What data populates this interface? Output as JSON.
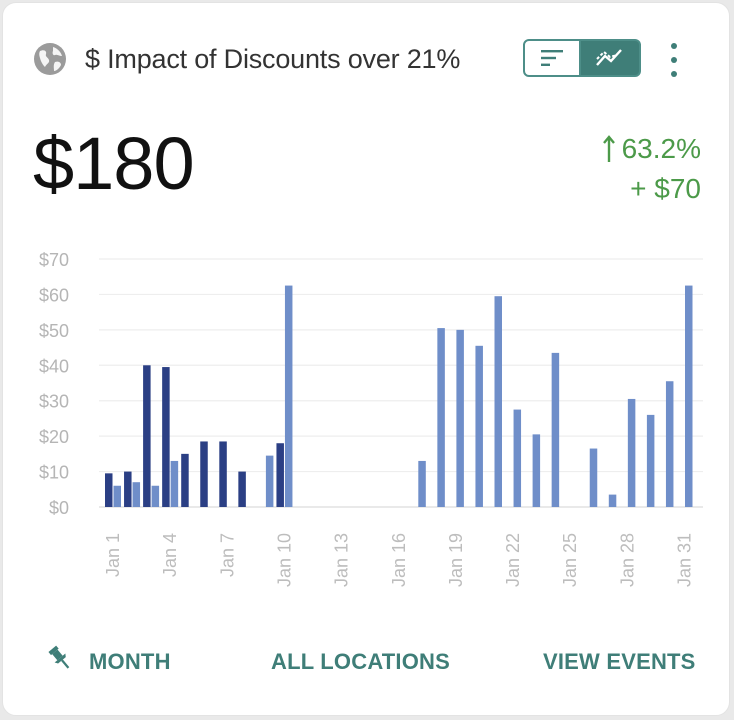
{
  "header": {
    "title": "$ Impact of Discounts over 21%",
    "icons": {
      "scope": "globe-icon",
      "view_bar": "bar-list-icon",
      "view_line": "trend-line-icon",
      "menu": "kebab-menu-icon"
    }
  },
  "summary": {
    "value": "$180",
    "change_percent": "63.2%",
    "change_amount": "+ $70",
    "change_direction": "up",
    "change_color": "#4c9a49"
  },
  "chart_data": {
    "type": "bar",
    "title": "",
    "xlabel": "",
    "ylabel": "",
    "ylim": [
      0,
      70
    ],
    "y_ticks": [
      "$0",
      "$10",
      "$20",
      "$30",
      "$40",
      "$50",
      "$60",
      "$70"
    ],
    "x_tick_labels": [
      "Jan 1",
      "Jan 4",
      "Jan 7",
      "Jan 10",
      "Jan 13",
      "Jan 16",
      "Jan 19",
      "Jan 22",
      "Jan 25",
      "Jan 28",
      "Jan 31"
    ],
    "grid": true,
    "legend": "none",
    "categories": [
      1,
      2,
      3,
      4,
      5,
      6,
      7,
      8,
      9,
      10,
      11,
      12,
      13,
      14,
      15,
      16,
      17,
      18,
      19,
      20,
      21,
      22,
      23,
      24,
      25,
      26,
      27,
      28,
      29,
      30,
      31
    ],
    "series": [
      {
        "color": "#2b3f84",
        "values": [
          9.5,
          10,
          40,
          39.5,
          15,
          18.5,
          18.5,
          10,
          null,
          18,
          null,
          null,
          null,
          null,
          null,
          null,
          null,
          null,
          null,
          null,
          null,
          null,
          null,
          null,
          null,
          null,
          null,
          null,
          null,
          null,
          null
        ]
      },
      {
        "color": "#6f8ec9",
        "values": [
          6,
          7,
          6,
          13,
          null,
          null,
          null,
          null,
          14.5,
          62.5,
          null,
          null,
          null,
          null,
          null,
          null,
          13,
          50.5,
          50,
          45.5,
          59.5,
          27.5,
          20.5,
          43.5,
          null,
          16.5,
          3.5,
          30.5,
          26,
          35.5,
          62.5
        ]
      }
    ]
  },
  "footer": {
    "period": "MONTH",
    "locations": "ALL LOCATIONS",
    "events": "VIEW EVENTS",
    "period_icon": "pin-icon"
  }
}
